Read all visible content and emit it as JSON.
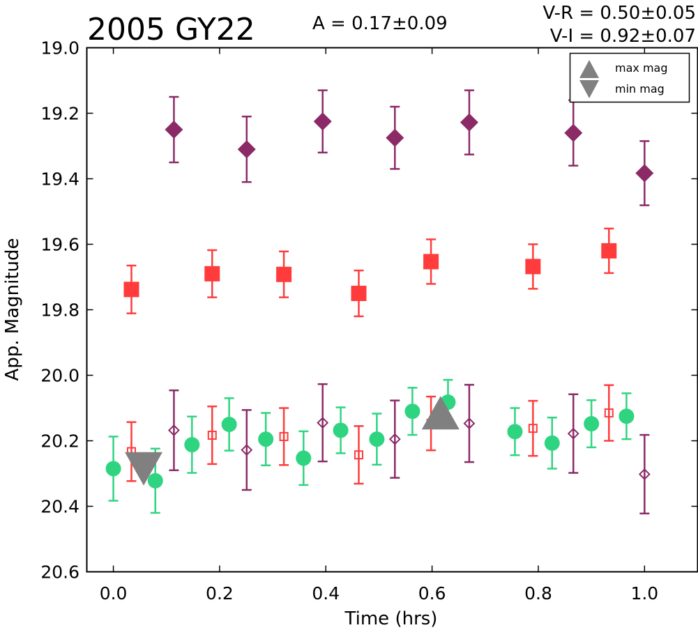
{
  "chart_data": {
    "type": "scatter",
    "title": "2005 GY22",
    "annotations": {
      "amplitude": "A  = 0.17±0.09",
      "v_r": "V-R = 0.50±0.05",
      "v_i": "V-I  = 0.92±0.07"
    },
    "xlabel": "Time (hrs)",
    "ylabel": "App. Magnitude",
    "xlim": [
      -0.05,
      1.1
    ],
    "ylim": [
      20.6,
      19.0
    ],
    "y_inverted": true,
    "x_ticks": [
      0.0,
      0.2,
      0.4,
      0.6,
      0.8,
      1.0
    ],
    "x_tick_labels": [
      "0.0",
      "0.2",
      "0.4",
      "0.6",
      "0.8",
      "1.0"
    ],
    "y_ticks": [
      19.0,
      19.2,
      19.4,
      19.6,
      19.8,
      20.0,
      20.2,
      20.4,
      20.6
    ],
    "y_tick_labels": [
      "19.0",
      "19.2",
      "19.4",
      "19.6",
      "19.8",
      "20.0",
      "20.2",
      "20.4",
      "20.6"
    ],
    "grid": false,
    "legend": {
      "placement": "top-right",
      "entries": [
        {
          "label": "max mag",
          "marker": "triangle-up",
          "color": "#808080"
        },
        {
          "label": "min mag",
          "marker": "triangle-down",
          "color": "#808080"
        }
      ]
    },
    "series": [
      {
        "marker": "diamond-filled",
        "color": "#8b2a66",
        "x": [
          0.114,
          0.251,
          0.394,
          0.53,
          0.67,
          0.866,
          1.0
        ],
        "y": [
          19.25,
          19.31,
          19.225,
          19.275,
          19.228,
          19.26,
          19.383
        ],
        "err": [
          0.1,
          0.1,
          0.095,
          0.095,
          0.098,
          0.1,
          0.098
        ]
      },
      {
        "marker": "square-filled",
        "color": "#ff3b3b",
        "x": [
          0.034,
          0.186,
          0.321,
          0.462,
          0.598,
          0.79,
          0.933
        ],
        "y": [
          19.738,
          19.69,
          19.692,
          19.75,
          19.653,
          19.668,
          19.62
        ],
        "err": [
          0.073,
          0.072,
          0.07,
          0.07,
          0.068,
          0.068,
          0.068
        ]
      },
      {
        "marker": "circle-filled",
        "color": "#2fd480",
        "x": [
          0.0,
          0.079,
          0.148,
          0.218,
          0.287,
          0.358,
          0.428,
          0.496,
          0.563,
          0.63,
          0.756,
          0.826,
          0.9,
          0.966
        ],
        "y": [
          20.285,
          20.322,
          20.212,
          20.15,
          20.195,
          20.253,
          20.168,
          20.195,
          20.11,
          20.082,
          20.172,
          20.207,
          20.148,
          20.125
        ],
        "err": [
          0.098,
          0.098,
          0.086,
          0.08,
          0.08,
          0.082,
          0.07,
          0.078,
          0.072,
          0.068,
          0.072,
          0.078,
          0.072,
          0.07
        ]
      },
      {
        "marker": "square-open",
        "color": "#ff3b3b",
        "x": [
          0.034,
          0.186,
          0.321,
          0.462,
          0.598,
          0.79,
          0.933
        ],
        "y": [
          20.233,
          20.183,
          20.187,
          20.243,
          20.147,
          20.162,
          20.115
        ],
        "err": [
          0.09,
          0.088,
          0.087,
          0.088,
          0.082,
          0.084,
          0.085
        ]
      },
      {
        "marker": "diamond-open",
        "color": "#8b2a66",
        "x": [
          0.114,
          0.251,
          0.394,
          0.53,
          0.67,
          0.866,
          1.0
        ],
        "y": [
          20.168,
          20.228,
          20.145,
          20.195,
          20.147,
          20.178,
          20.302
        ],
        "err": [
          0.122,
          0.122,
          0.118,
          0.118,
          0.118,
          0.12,
          0.12
        ]
      }
    ],
    "extrema": {
      "max_mag": {
        "x": 0.616,
        "y": 20.125,
        "marker": "triangle-up",
        "color": "#808080"
      },
      "min_mag": {
        "x": 0.057,
        "y": 20.275,
        "marker": "triangle-down",
        "color": "#808080"
      }
    }
  }
}
